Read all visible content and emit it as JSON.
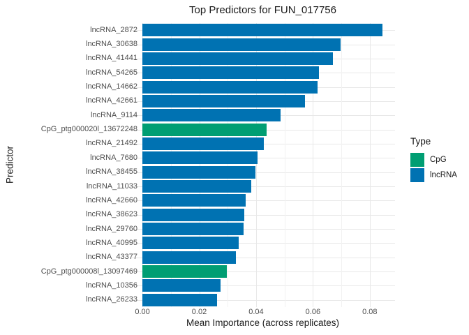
{
  "title": "Top Predictors for FUN_017756",
  "chart_data": {
    "type": "bar",
    "orientation": "horizontal",
    "title": "Top Predictors for FUN_017756",
    "xlabel": "Mean Importance (across replicates)",
    "ylabel": "Predictor",
    "xlim": [
      0,
      0.0888
    ],
    "grid": true,
    "x_ticks": [
      "0.00",
      "0.02",
      "0.04",
      "0.06",
      "0.08"
    ],
    "x_tick_values": [
      0.0,
      0.02,
      0.04,
      0.06,
      0.08
    ],
    "x_minor_tick_values": [
      0.01,
      0.03,
      0.05,
      0.07
    ],
    "legend": {
      "title": "Type",
      "position": "right",
      "entries": [
        {
          "label": "CpG",
          "color": "#009E73"
        },
        {
          "label": "lncRNA",
          "color": "#0072B2"
        }
      ]
    },
    "colors": {
      "CpG": "#009E73",
      "lncRNA": "#0072B2"
    },
    "bars": [
      {
        "label": "lncRNA_2872",
        "value": 0.0845,
        "type": "lncRNA"
      },
      {
        "label": "lncRNA_30638",
        "value": 0.0697,
        "type": "lncRNA"
      },
      {
        "label": "lncRNA_41441",
        "value": 0.067,
        "type": "lncRNA"
      },
      {
        "label": "lncRNA_54265",
        "value": 0.062,
        "type": "lncRNA"
      },
      {
        "label": "lncRNA_14662",
        "value": 0.0616,
        "type": "lncRNA"
      },
      {
        "label": "lncRNA_42661",
        "value": 0.0571,
        "type": "lncRNA"
      },
      {
        "label": "lncRNA_9114",
        "value": 0.0486,
        "type": "lncRNA"
      },
      {
        "label": "CpG_ptg000020l_13672248",
        "value": 0.0438,
        "type": "CpG"
      },
      {
        "label": "lncRNA_21492",
        "value": 0.0427,
        "type": "lncRNA"
      },
      {
        "label": "lncRNA_7680",
        "value": 0.0404,
        "type": "lncRNA"
      },
      {
        "label": "lncRNA_38455",
        "value": 0.0397,
        "type": "lncRNA"
      },
      {
        "label": "lncRNA_11033",
        "value": 0.0382,
        "type": "lncRNA"
      },
      {
        "label": "lncRNA_42660",
        "value": 0.0363,
        "type": "lncRNA"
      },
      {
        "label": "lncRNA_38623",
        "value": 0.0358,
        "type": "lncRNA"
      },
      {
        "label": "lncRNA_29760",
        "value": 0.0355,
        "type": "lncRNA"
      },
      {
        "label": "lncRNA_40995",
        "value": 0.0338,
        "type": "lncRNA"
      },
      {
        "label": "lncRNA_43377",
        "value": 0.033,
        "type": "lncRNA"
      },
      {
        "label": "CpG_ptg000008l_13097469",
        "value": 0.0296,
        "type": "CpG"
      },
      {
        "label": "lncRNA_10356",
        "value": 0.0276,
        "type": "lncRNA"
      },
      {
        "label": "lncRNA_26233",
        "value": 0.0263,
        "type": "lncRNA"
      }
    ]
  }
}
